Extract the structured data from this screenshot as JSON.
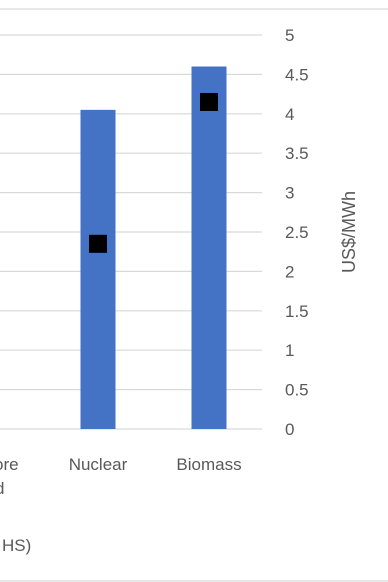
{
  "chart_data": {
    "type": "bar",
    "categories": [
      "...re\n...d",
      "Nuclear",
      "Biomass"
    ],
    "category_labels": [
      {
        "lines": [
          "ore",
          "d"
        ]
      },
      {
        "lines": [
          "Nuclear"
        ]
      },
      {
        "lines": [
          "Biomass"
        ]
      }
    ],
    "series": [
      {
        "kind": "bar",
        "values": [
          null,
          4.05,
          4.6
        ]
      },
      {
        "kind": "marker",
        "values": [
          null,
          2.35,
          4.15
        ]
      }
    ],
    "ylabel": "US$/MWh",
    "ylim": [
      0,
      5
    ],
    "yticks": [
      "0",
      "0.5",
      "1",
      "1.5",
      "2",
      "2.5",
      "3",
      "3.5",
      "4",
      "4.5",
      "5"
    ],
    "grid": true,
    "legend_fragment": "HS)",
    "colors": {
      "bar": "#4472C4",
      "marker": "#000000",
      "grid": "#D9D9D9",
      "text": "#595959"
    }
  }
}
